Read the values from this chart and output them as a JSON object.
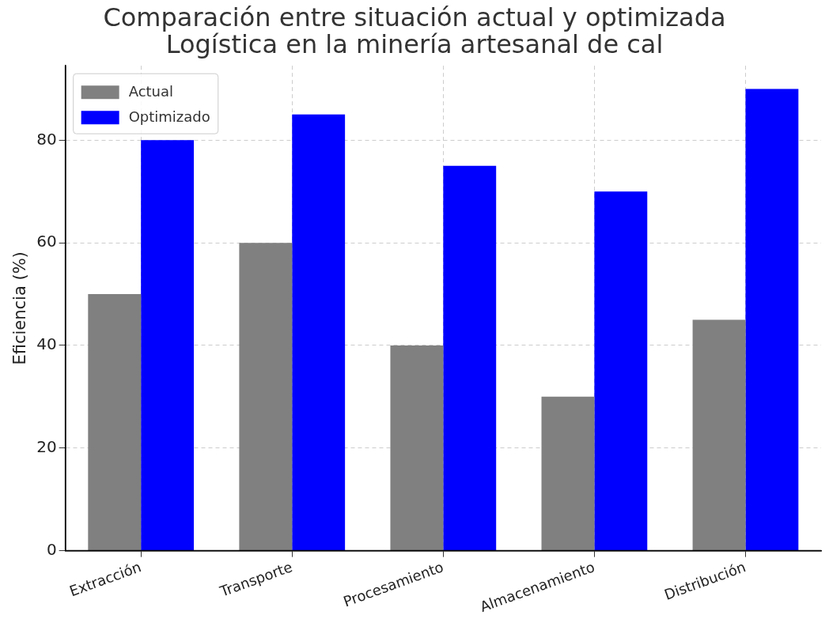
{
  "chart_data": {
    "type": "bar",
    "title": "Comparación entre situación actual y optimizada\nLogística en la minería artesanal de cal",
    "ylabel": "Eficiencia (%)",
    "categories": [
      "Extracción",
      "Transporte",
      "Procesamiento",
      "Almacenamiento",
      "Distribución"
    ],
    "series": [
      {
        "name": "Actual",
        "color": "#808080",
        "values": [
          50,
          60,
          40,
          30,
          45
        ]
      },
      {
        "name": "Optimizado",
        "color": "#0000ff",
        "values": [
          80,
          85,
          75,
          70,
          90
        ]
      }
    ],
    "ylim": [
      0,
      94.5
    ],
    "yticks": [
      0,
      20,
      40,
      60,
      80
    ],
    "grid": true,
    "legend": "top left"
  }
}
